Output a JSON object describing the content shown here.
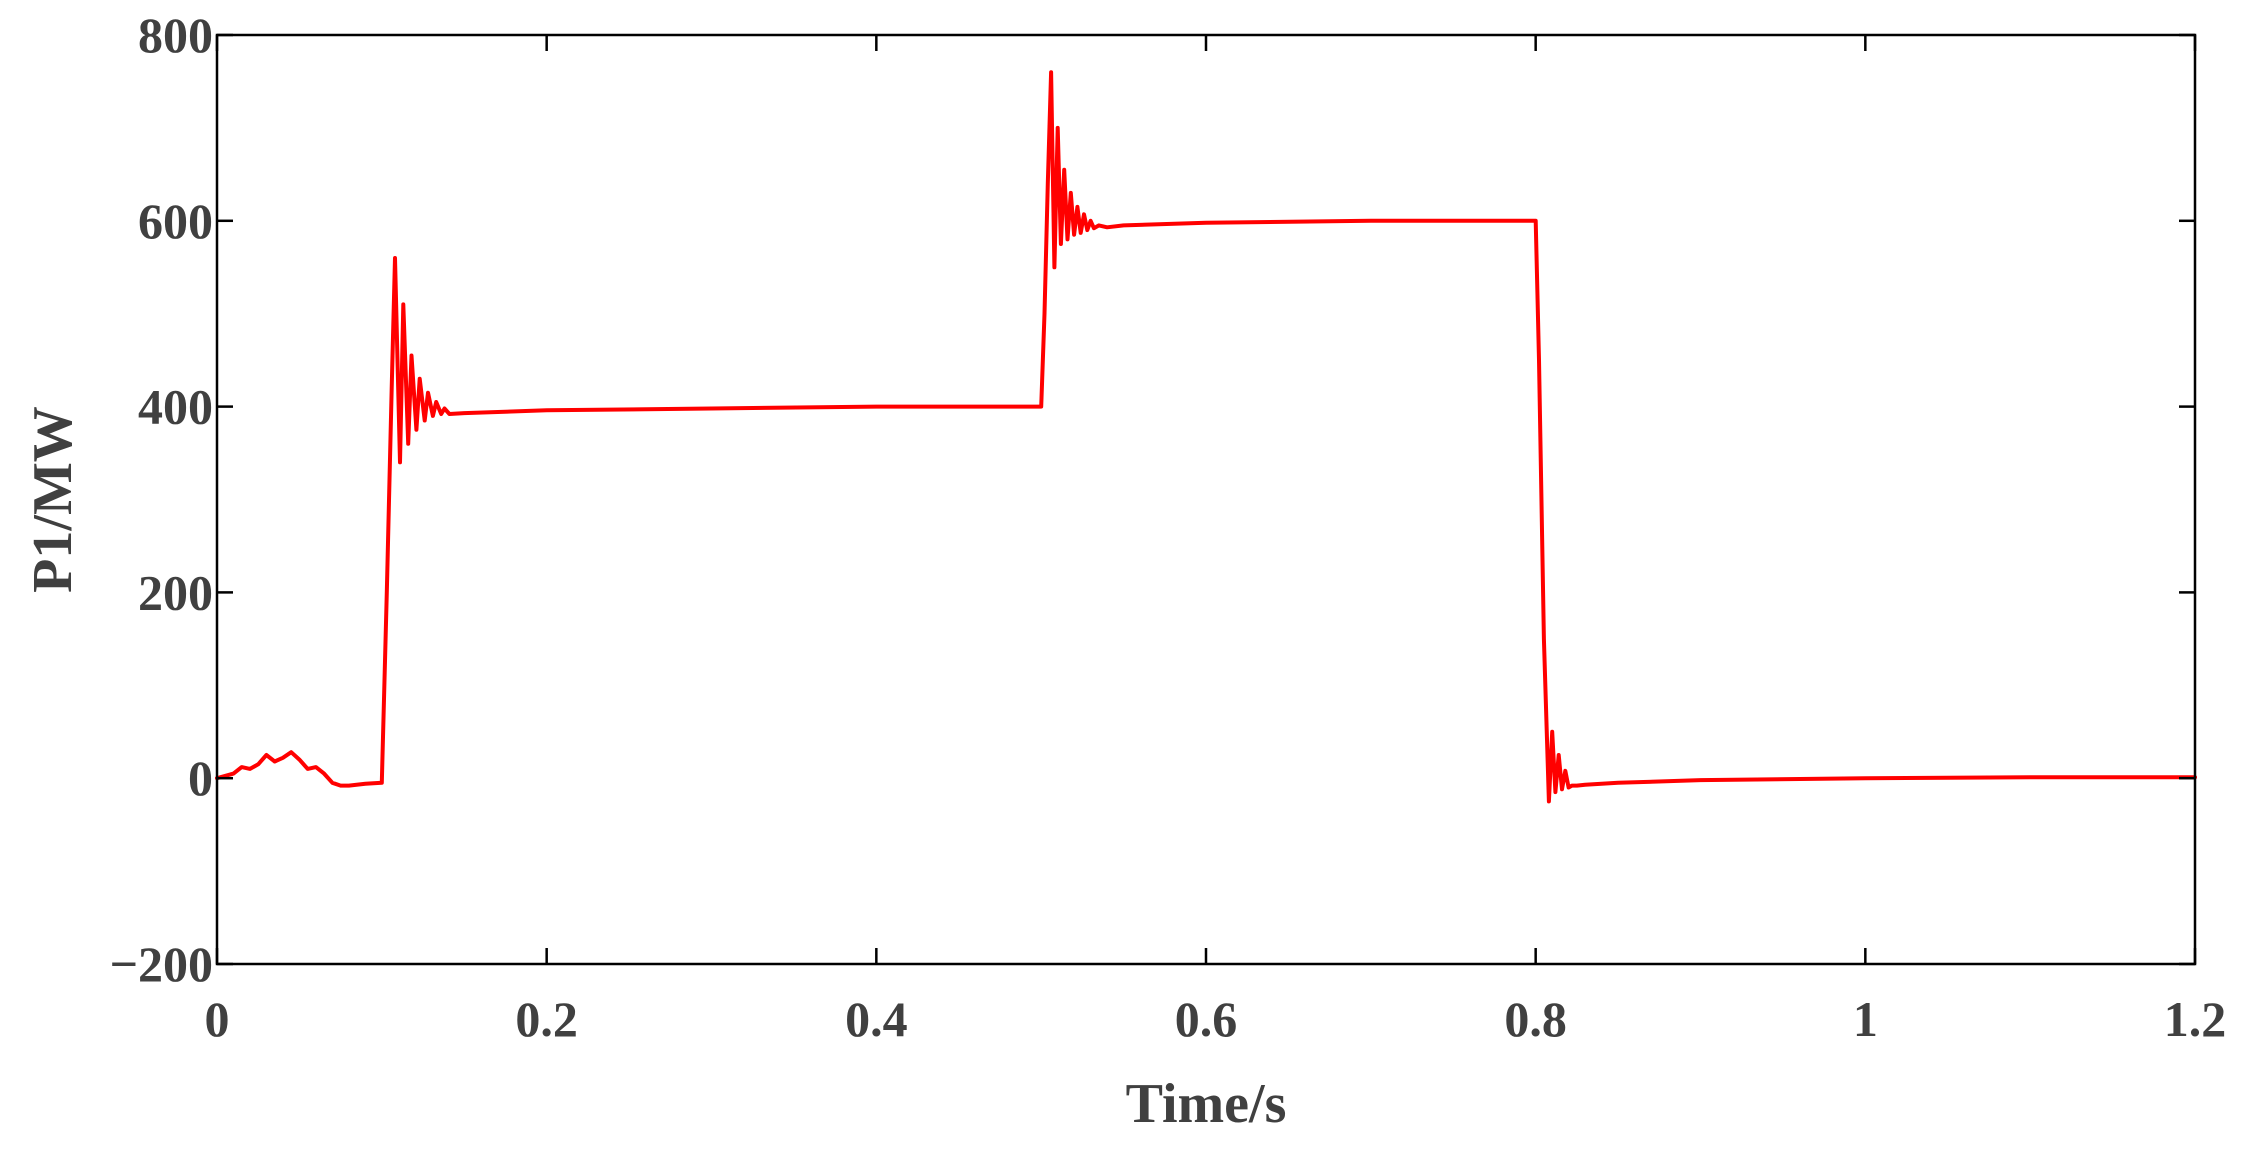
{
  "chart_data": {
    "type": "line",
    "title": "",
    "xlabel": "Time/s",
    "ylabel": "P1/MW",
    "xlim": [
      0,
      1.2
    ],
    "ylim": [
      -200,
      800
    ],
    "xticks": [
      0,
      0.2,
      0.4,
      0.6,
      0.8,
      1,
      1.2
    ],
    "xtick_labels": [
      "0",
      "0.2",
      "0.4",
      "0.6",
      "0.8",
      "1",
      "1.2"
    ],
    "yticks": [
      -200,
      0,
      200,
      400,
      600,
      800
    ],
    "ytick_labels": [
      "−200",
      "0",
      "200",
      "400",
      "600",
      "800"
    ],
    "grid": false,
    "legend": "none",
    "series": [
      {
        "color": "#ff0000",
        "x": [
          0,
          0.01,
          0.015,
          0.02,
          0.025,
          0.03,
          0.035,
          0.04,
          0.045,
          0.05,
          0.055,
          0.06,
          0.065,
          0.07,
          0.075,
          0.08,
          0.09,
          0.1,
          0.103,
          0.106,
          0.108,
          0.111,
          0.113,
          0.116,
          0.118,
          0.121,
          0.123,
          0.126,
          0.128,
          0.131,
          0.133,
          0.136,
          0.138,
          0.141,
          0.15,
          0.2,
          0.3,
          0.4,
          0.5,
          0.502,
          0.504,
          0.506,
          0.508,
          0.51,
          0.512,
          0.514,
          0.516,
          0.518,
          0.52,
          0.522,
          0.524,
          0.526,
          0.528,
          0.53,
          0.532,
          0.535,
          0.54,
          0.55,
          0.6,
          0.7,
          0.8,
          0.802,
          0.805,
          0.808,
          0.81,
          0.812,
          0.814,
          0.816,
          0.818,
          0.82,
          0.822,
          0.825,
          0.83,
          0.85,
          0.9,
          1.0,
          1.1,
          1.2
        ],
        "y": [
          0,
          5,
          12,
          10,
          15,
          25,
          18,
          22,
          28,
          20,
          10,
          12,
          5,
          -5,
          -8,
          -8,
          -6,
          -5,
          200,
          420,
          560,
          340,
          510,
          360,
          455,
          375,
          430,
          385,
          415,
          390,
          405,
          392,
          398,
          392,
          393,
          396,
          398,
          400,
          400,
          500,
          640,
          760,
          550,
          700,
          575,
          655,
          580,
          630,
          585,
          615,
          587,
          607,
          590,
          600,
          592,
          595,
          593,
          595,
          598,
          600,
          600,
          450,
          150,
          -25,
          50,
          -15,
          25,
          -12,
          8,
          -10,
          -8,
          -8,
          -7,
          -5,
          -2,
          0,
          1,
          1
        ]
      }
    ]
  }
}
